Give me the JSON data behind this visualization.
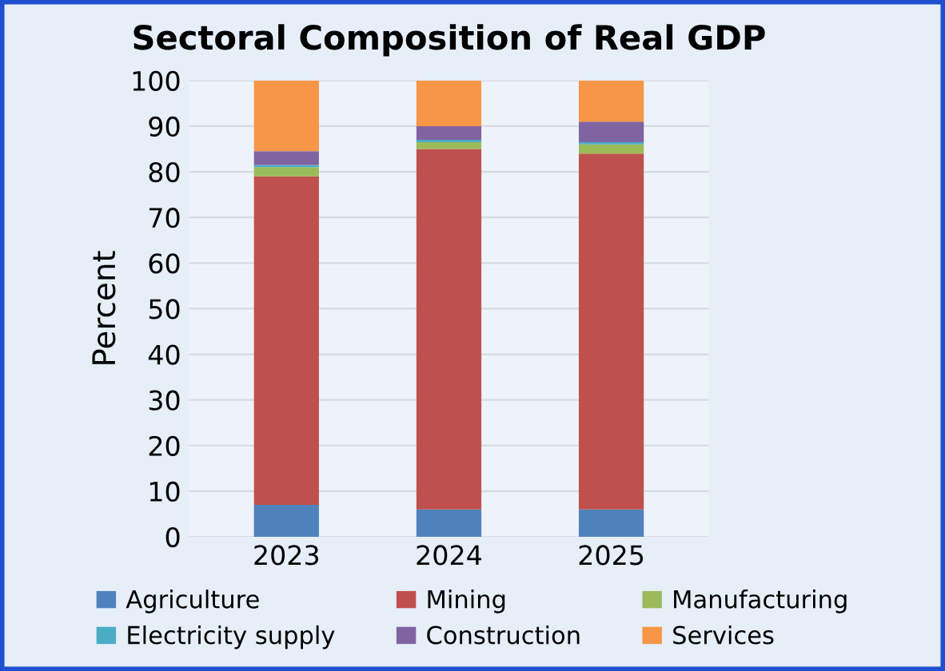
{
  "chart_data": {
    "type": "bar",
    "stacked": true,
    "title": "Sectoral Composition of Real GDP",
    "ylabel": "Percent",
    "categories": [
      "2023",
      "2024",
      "2025"
    ],
    "series": [
      {
        "name": "Agriculture",
        "color": "#4f81bd",
        "values": [
          7,
          6,
          6
        ]
      },
      {
        "name": "Mining",
        "color": "#c0504d",
        "values": [
          72,
          79,
          78
        ]
      },
      {
        "name": "Manufacturing",
        "color": "#9bbb59",
        "values": [
          2,
          1.5,
          2
        ]
      },
      {
        "name": "Electricity supply",
        "color": "#4bacc6",
        "values": [
          0.5,
          0.5,
          0.5
        ]
      },
      {
        "name": "Construction",
        "color": "#8064a2",
        "values": [
          3,
          3,
          4.5
        ]
      },
      {
        "name": "Services",
        "color": "#f79646",
        "values": [
          15.5,
          10,
          9
        ]
      }
    ],
    "ylim": [
      0,
      100
    ],
    "yticks": [
      0,
      10,
      20,
      30,
      40,
      50,
      60,
      70,
      80,
      90,
      100
    ],
    "grid": "y",
    "legend": "bottom"
  }
}
